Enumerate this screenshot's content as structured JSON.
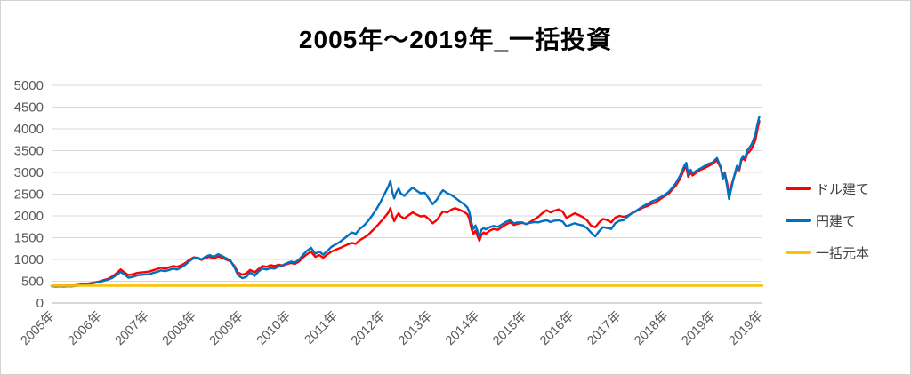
{
  "title": "2005年〜2019年_一括投資",
  "legend": {
    "items": [
      {
        "label": "ドル建て",
        "color": "#FF0000"
      },
      {
        "label": "円建て",
        "color": "#0070C0"
      },
      {
        "label": "一括元本",
        "color": "#FFC000"
      }
    ]
  },
  "colors": {
    "gridline": "#D9D9D9",
    "axis_line": "#BFBFBF",
    "axis_text": "#595959"
  },
  "chart_data": {
    "type": "line",
    "title": "2005年〜2019年_一括投資",
    "xlabel": "",
    "ylabel": "",
    "ylim": [
      0,
      5000
    ],
    "xlim": [
      2005.0,
      2019.55
    ],
    "grid": true,
    "legend_position": "right",
    "y_ticks": [
      0,
      500,
      1000,
      1500,
      2000,
      2500,
      3000,
      3500,
      4000,
      4500,
      5000
    ],
    "x_tick_labels": [
      "2005年",
      "2006年",
      "2007年",
      "2008年",
      "2009年",
      "2010年",
      "2011年",
      "2012年",
      "2013年",
      "2014年",
      "2015年",
      "2016年",
      "2017年",
      "2018年",
      "2019年",
      "2019年"
    ],
    "x": [
      2005.0,
      2005.08,
      2005.17,
      2005.25,
      2005.33,
      2005.42,
      2005.5,
      2005.58,
      2005.67,
      2005.75,
      2005.83,
      2005.92,
      2006.0,
      2006.08,
      2006.17,
      2006.25,
      2006.33,
      2006.42,
      2006.5,
      2006.58,
      2006.67,
      2006.75,
      2006.83,
      2006.92,
      2007.0,
      2007.08,
      2007.17,
      2007.25,
      2007.33,
      2007.42,
      2007.5,
      2007.58,
      2007.67,
      2007.75,
      2007.83,
      2007.92,
      2008.0,
      2008.08,
      2008.17,
      2008.25,
      2008.33,
      2008.42,
      2008.5,
      2008.58,
      2008.67,
      2008.75,
      2008.83,
      2008.92,
      2009.0,
      2009.08,
      2009.17,
      2009.25,
      2009.33,
      2009.42,
      2009.5,
      2009.58,
      2009.67,
      2009.75,
      2009.83,
      2009.92,
      2010.0,
      2010.08,
      2010.17,
      2010.25,
      2010.33,
      2010.42,
      2010.5,
      2010.58,
      2010.67,
      2010.75,
      2010.83,
      2010.92,
      2011.0,
      2011.08,
      2011.17,
      2011.25,
      2011.33,
      2011.42,
      2011.5,
      2011.58,
      2011.67,
      2011.75,
      2011.83,
      2011.92,
      2011.96,
      2012.0,
      2012.04,
      2012.08,
      2012.13,
      2012.17,
      2012.25,
      2012.33,
      2012.42,
      2012.5,
      2012.58,
      2012.67,
      2012.75,
      2012.83,
      2012.92,
      2013.0,
      2013.04,
      2013.13,
      2013.21,
      2013.29,
      2013.38,
      2013.46,
      2013.54,
      2013.58,
      2013.63,
      2013.67,
      2013.71,
      2013.75,
      2013.79,
      2013.83,
      2013.88,
      2013.92,
      2014.0,
      2014.08,
      2014.17,
      2014.25,
      2014.33,
      2014.42,
      2014.5,
      2014.58,
      2014.67,
      2014.75,
      2014.83,
      2014.92,
      2015.0,
      2015.08,
      2015.17,
      2015.25,
      2015.33,
      2015.42,
      2015.5,
      2015.58,
      2015.67,
      2015.75,
      2015.83,
      2015.92,
      2016.0,
      2016.08,
      2016.17,
      2016.25,
      2016.33,
      2016.42,
      2016.5,
      2016.58,
      2016.67,
      2016.75,
      2016.83,
      2016.92,
      2017.0,
      2017.08,
      2017.17,
      2017.25,
      2017.33,
      2017.42,
      2017.5,
      2017.58,
      2017.67,
      2017.75,
      2017.83,
      2017.92,
      2018.0,
      2018.04,
      2018.08,
      2018.13,
      2018.17,
      2018.25,
      2018.33,
      2018.42,
      2018.5,
      2018.58,
      2018.67,
      2018.75,
      2018.79,
      2018.83,
      2018.88,
      2018.92,
      2019.0,
      2019.04,
      2019.08,
      2019.13,
      2019.17,
      2019.21,
      2019.25,
      2019.29,
      2019.33,
      2019.38,
      2019.42,
      2019.46,
      2019.5,
      2019.54
    ],
    "series": [
      {
        "name": "ドル建て",
        "key": "usd",
        "color": "#FF0000",
        "width": 2.4,
        "values": [
          400,
          398,
          403,
          399,
          405,
          402,
          410,
          420,
          432,
          445,
          462,
          480,
          500,
          530,
          560,
          610,
          680,
          770,
          700,
          640,
          660,
          690,
          700,
          710,
          720,
          750,
          780,
          810,
          790,
          820,
          850,
          830,
          870,
          920,
          990,
          1050,
          1030,
          990,
          1040,
          1060,
          1020,
          1070,
          1040,
          1000,
          960,
          860,
          700,
          650,
          680,
          760,
          700,
          780,
          850,
          830,
          870,
          850,
          880,
          860,
          890,
          920,
          900,
          950,
          1050,
          1120,
          1180,
          1060,
          1100,
          1040,
          1120,
          1180,
          1220,
          1260,
          1300,
          1340,
          1380,
          1360,
          1440,
          1500,
          1560,
          1650,
          1750,
          1850,
          1950,
          2080,
          2180,
          2000,
          1880,
          1980,
          2060,
          1990,
          1940,
          2010,
          2080,
          2030,
          1990,
          2000,
          1930,
          1830,
          1910,
          2040,
          2100,
          2080,
          2140,
          2180,
          2140,
          2100,
          2040,
          1940,
          1690,
          1590,
          1660,
          1540,
          1430,
          1560,
          1620,
          1590,
          1660,
          1700,
          1680,
          1740,
          1800,
          1850,
          1790,
          1820,
          1840,
          1810,
          1860,
          1920,
          1980,
          2060,
          2130,
          2080,
          2120,
          2150,
          2100,
          1950,
          2010,
          2060,
          2020,
          1970,
          1900,
          1780,
          1740,
          1850,
          1930,
          1900,
          1850,
          1960,
          2000,
          1980,
          2000,
          2060,
          2100,
          2150,
          2200,
          2230,
          2280,
          2310,
          2380,
          2440,
          2500,
          2600,
          2700,
          2870,
          3080,
          3130,
          2900,
          3000,
          2930,
          3000,
          3060,
          3100,
          3150,
          3200,
          3280,
          3100,
          2900,
          3000,
          2750,
          2500,
          2820,
          2960,
          3100,
          3050,
          3270,
          3320,
          3280,
          3430,
          3470,
          3540,
          3630,
          3740,
          3980,
          4180
        ]
      },
      {
        "name": "円建て",
        "key": "jpy",
        "color": "#0070C0",
        "width": 2.4,
        "values": [
          385,
          380,
          384,
          379,
          386,
          383,
          393,
          404,
          418,
          432,
          452,
          470,
          488,
          515,
          540,
          580,
          640,
          715,
          650,
          580,
          600,
          630,
          645,
          655,
          660,
          690,
          715,
          750,
          730,
          760,
          790,
          770,
          820,
          880,
          960,
          1030,
          1040,
          1000,
          1070,
          1100,
          1060,
          1120,
          1080,
          1030,
          980,
          830,
          640,
          570,
          600,
          700,
          620,
          720,
          790,
          770,
          800,
          790,
          840,
          870,
          910,
          950,
          930,
          990,
          1110,
          1200,
          1270,
          1130,
          1180,
          1110,
          1200,
          1290,
          1340,
          1400,
          1470,
          1540,
          1620,
          1590,
          1700,
          1780,
          1880,
          2000,
          2150,
          2300,
          2480,
          2680,
          2800,
          2550,
          2400,
          2530,
          2630,
          2520,
          2460,
          2560,
          2650,
          2580,
          2520,
          2530,
          2400,
          2270,
          2380,
          2530,
          2590,
          2520,
          2480,
          2420,
          2340,
          2280,
          2200,
          2100,
          1830,
          1700,
          1780,
          1650,
          1520,
          1680,
          1720,
          1690,
          1740,
          1770,
          1750,
          1800,
          1860,
          1900,
          1830,
          1850,
          1850,
          1810,
          1840,
          1860,
          1850,
          1880,
          1900,
          1860,
          1890,
          1900,
          1870,
          1760,
          1800,
          1830,
          1800,
          1780,
          1720,
          1620,
          1530,
          1650,
          1740,
          1720,
          1700,
          1830,
          1890,
          1900,
          1980,
          2060,
          2110,
          2170,
          2230,
          2280,
          2330,
          2370,
          2420,
          2470,
          2540,
          2640,
          2760,
          2940,
          3150,
          3220,
          2950,
          3060,
          2980,
          3040,
          3090,
          3150,
          3200,
          3230,
          3330,
          3120,
          2850,
          2980,
          2680,
          2390,
          2800,
          2980,
          3150,
          3080,
          3300,
          3380,
          3330,
          3500,
          3560,
          3640,
          3750,
          3870,
          4100,
          4280
        ]
      },
      {
        "name": "一括元本",
        "key": "principal",
        "color": "#FFC000",
        "width": 2.6,
        "constant": 400
      }
    ]
  }
}
